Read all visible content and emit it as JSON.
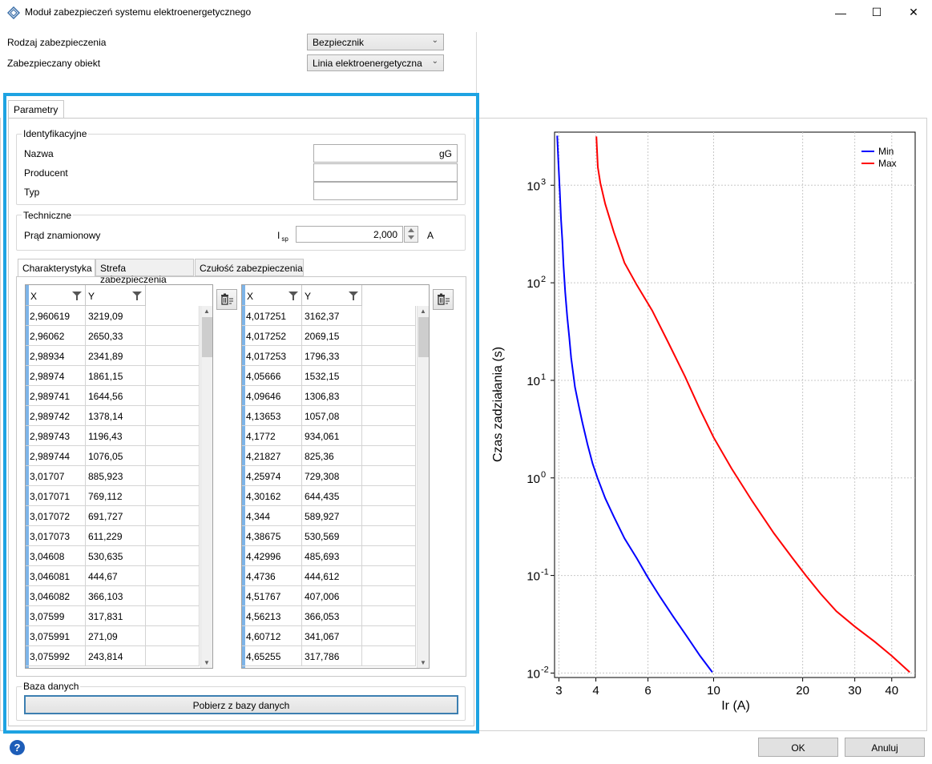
{
  "window": {
    "title": "Moduł zabezpieczeń systemu elektroenergetycznego",
    "min": "—",
    "max": "☐",
    "close": "✕"
  },
  "form": {
    "protection_type_label": "Rodzaj zabezpieczenia",
    "protection_type_value": "Bezpiecznik",
    "protected_object_label": "Zabezpieczany obiekt",
    "protected_object_value": "Linia elektroenergetyczna"
  },
  "tabs": {
    "parametry": "Parametry"
  },
  "identification": {
    "title": "Identyfikacyjne",
    "name_label": "Nazwa",
    "name_value": "gG",
    "producer_label": "Producent",
    "producer_value": "",
    "type_label": "Typ",
    "type_value": ""
  },
  "technical": {
    "title": "Techniczne",
    "rated_current_label": "Prąd znamionowy",
    "symbol": "I",
    "symbol_sub": "sp",
    "rated_current_value": "2,000",
    "unit": "A"
  },
  "inner_tabs": [
    "Charakterystyka",
    "Strefa zabezpieczenia",
    "Czułość zabezpieczenia"
  ],
  "grid_min": {
    "headers": [
      "X",
      "Y"
    ],
    "rows": [
      [
        "2,960619",
        "3219,09"
      ],
      [
        "2,96062",
        "2650,33"
      ],
      [
        "2,98934",
        "2341,89"
      ],
      [
        "2,98974",
        "1861,15"
      ],
      [
        "2,989741",
        "1644,56"
      ],
      [
        "2,989742",
        "1378,14"
      ],
      [
        "2,989743",
        "1196,43"
      ],
      [
        "2,989744",
        "1076,05"
      ],
      [
        "3,01707",
        "885,923"
      ],
      [
        "3,017071",
        "769,112"
      ],
      [
        "3,017072",
        "691,727"
      ],
      [
        "3,017073",
        "611,229"
      ],
      [
        "3,04608",
        "530,635"
      ],
      [
        "3,046081",
        "444,67"
      ],
      [
        "3,046082",
        "366,103"
      ],
      [
        "3,07599",
        "317,831"
      ],
      [
        "3,075991",
        "271,09"
      ],
      [
        "3,075992",
        "243,814"
      ]
    ]
  },
  "grid_max": {
    "headers": [
      "X",
      "Y"
    ],
    "rows": [
      [
        "4,017251",
        "3162,37"
      ],
      [
        "4,017252",
        "2069,15"
      ],
      [
        "4,017253",
        "1796,33"
      ],
      [
        "4,05666",
        "1532,15"
      ],
      [
        "4,09646",
        "1306,83"
      ],
      [
        "4,13653",
        "1057,08"
      ],
      [
        "4,1772",
        "934,061"
      ],
      [
        "4,21827",
        "825,36"
      ],
      [
        "4,25974",
        "729,308"
      ],
      [
        "4,30162",
        "644,435"
      ],
      [
        "4,344",
        "589,927"
      ],
      [
        "4,38675",
        "530,569"
      ],
      [
        "4,42996",
        "485,693"
      ],
      [
        "4,4736",
        "444,612"
      ],
      [
        "4,51767",
        "407,006"
      ],
      [
        "4,56213",
        "366,053"
      ],
      [
        "4,60712",
        "341,067"
      ],
      [
        "4,65255",
        "317,786"
      ]
    ]
  },
  "database": {
    "title": "Baza danych",
    "button": "Pobierz z bazy danych"
  },
  "footer": {
    "help": "?",
    "ok": "OK",
    "cancel": "Anuluj"
  },
  "chart_data": {
    "type": "line",
    "xlabel": "Ir (A)",
    "ylabel": "Czas zadziałania (s)",
    "x_scale": "log",
    "y_scale": "log",
    "xlim": [
      2.9,
      48
    ],
    "ylim": [
      0.009,
      3500
    ],
    "x_ticks": [
      3,
      4,
      6,
      10,
      20,
      30,
      40
    ],
    "x_tick_labels": [
      "3",
      "4",
      "6",
      "10",
      "20",
      "30",
      "40"
    ],
    "y_ticks": [
      0.01,
      0.1,
      1,
      10,
      100,
      1000
    ],
    "y_tick_bases": [
      "10",
      "10",
      "10",
      "10",
      "10",
      "10"
    ],
    "y_tick_exps": [
      "-2",
      "-1",
      "0",
      "1",
      "2",
      "3"
    ],
    "grid": true,
    "legend_position": "top-right",
    "series": [
      {
        "name": "Min",
        "color": "#0000ff",
        "x": [
          2.96,
          2.99,
          3.02,
          3.05,
          3.08,
          3.11,
          3.15,
          3.2,
          3.25,
          3.3,
          3.4,
          3.5,
          3.6,
          3.75,
          3.9,
          4.05,
          4.3,
          4.6,
          5.0,
          5.5,
          6.0,
          6.6,
          7.3,
          8.1,
          9.0,
          9.9
        ],
        "y": [
          3219,
          1650,
          886,
          445,
          272,
          150,
          80,
          45,
          28,
          17,
          8.5,
          5.5,
          3.7,
          2.2,
          1.4,
          1.0,
          0.62,
          0.4,
          0.24,
          0.15,
          0.095,
          0.06,
          0.038,
          0.024,
          0.015,
          0.0102
        ]
      },
      {
        "name": "Max",
        "color": "#ff0000",
        "x": [
          4.017,
          4.06,
          4.14,
          4.3,
          4.6,
          5.0,
          5.5,
          6.2,
          7.0,
          8.0,
          9.0,
          10.0,
          11.5,
          13.5,
          16.0,
          18.5,
          20.5,
          23.0,
          26.0,
          30.0,
          35.0,
          40.0,
          46.0
        ],
        "y": [
          3162,
          1532,
          1057,
          644,
          330,
          160,
          95,
          52,
          25,
          11,
          5.0,
          2.6,
          1.25,
          0.58,
          0.27,
          0.15,
          0.1,
          0.065,
          0.043,
          0.03,
          0.021,
          0.015,
          0.0102
        ]
      }
    ]
  }
}
